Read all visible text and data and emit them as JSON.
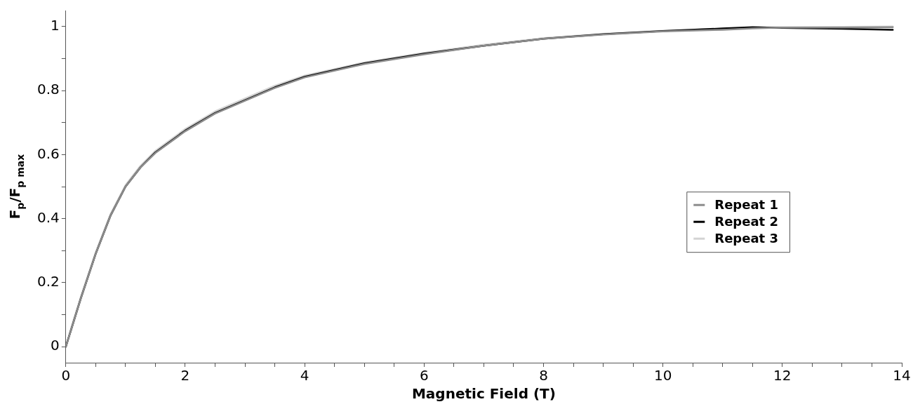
{
  "chart_data": {
    "type": "line",
    "xlabel": "Magnetic Field (T)",
    "ylabel": "F$_{p}$/F$_{p max}$",
    "x": [
      0,
      0.1,
      0.25,
      0.5,
      0.75,
      1,
      1.25,
      1.5,
      2,
      2.5,
      3,
      3.5,
      4,
      5,
      6,
      7,
      8,
      9,
      10,
      11,
      11.5,
      12,
      13,
      13.85
    ],
    "series": [
      {
        "name": "Repeat 1",
        "color": "#8c8c8c",
        "values": [
          0,
          0.06,
          0.15,
          0.29,
          0.41,
          0.5,
          0.56,
          0.605,
          0.673,
          0.728,
          0.768,
          0.808,
          0.841,
          0.883,
          0.913,
          0.94,
          0.962,
          0.975,
          0.985,
          0.99,
          0.994,
          0.997,
          0.997,
          0.998
        ]
      },
      {
        "name": "Repeat 2",
        "color": "#000000",
        "values": [
          0,
          0.06,
          0.15,
          0.29,
          0.41,
          0.5,
          0.56,
          0.607,
          0.675,
          0.73,
          0.77,
          0.81,
          0.843,
          0.885,
          0.915,
          0.94,
          0.962,
          0.976,
          0.986,
          0.994,
          0.998,
          0.996,
          0.993,
          0.99
        ]
      },
      {
        "name": "Repeat 3",
        "color": "#d3d3d3",
        "values": [
          0,
          0.065,
          0.155,
          0.295,
          0.415,
          0.505,
          0.565,
          0.612,
          0.68,
          0.735,
          0.775,
          0.815,
          0.847,
          0.888,
          0.918,
          0.943,
          0.964,
          0.977,
          0.987,
          0.993,
          0.996,
          0.998,
          0.999,
          1.0
        ]
      }
    ],
    "xlim": [
      0,
      14
    ],
    "xticks": [
      0,
      {
        "value": 0.5,
        "label": null
      },
      {
        "value": 1,
        "label": null
      },
      {
        "value": 1.5,
        "label": null
      },
      2,
      {
        "value": 2.5,
        "label": null
      },
      {
        "value": 3,
        "label": null
      },
      {
        "value": 3.5,
        "label": null
      },
      4,
      {
        "value": 4.5,
        "label": null
      },
      {
        "value": 5,
        "label": null
      },
      {
        "value": 5.5,
        "label": null
      },
      6,
      {
        "value": 6.5,
        "label": null
      },
      {
        "value": 7,
        "label": null
      },
      {
        "value": 7.5,
        "label": null
      },
      8,
      {
        "value": 8.5,
        "label": null
      },
      {
        "value": 9,
        "label": null
      },
      {
        "value": 9.5,
        "label": null
      },
      10,
      {
        "value": 10.5,
        "label": null
      },
      {
        "value": 11,
        "label": null
      },
      {
        "value": 11.5,
        "label": null
      },
      12,
      {
        "value": 12.5,
        "label": null
      },
      {
        "value": 13,
        "label": null
      },
      {
        "value": 13.5,
        "label": null
      },
      14
    ],
    "ylim": [
      -0.05,
      1.05
    ],
    "yticks": [
      0,
      {
        "value": 0.1,
        "label": null
      },
      0.2,
      {
        "value": 0.3,
        "label": null
      },
      0.4,
      {
        "value": 0.5,
        "label": null
      },
      0.6,
      {
        "value": 0.7,
        "label": null
      },
      0.8,
      {
        "value": 0.9,
        "label": null
      },
      1
    ],
    "legend": "right",
    "grid": false,
    "marker": "none",
    "line_style": "solid"
  }
}
